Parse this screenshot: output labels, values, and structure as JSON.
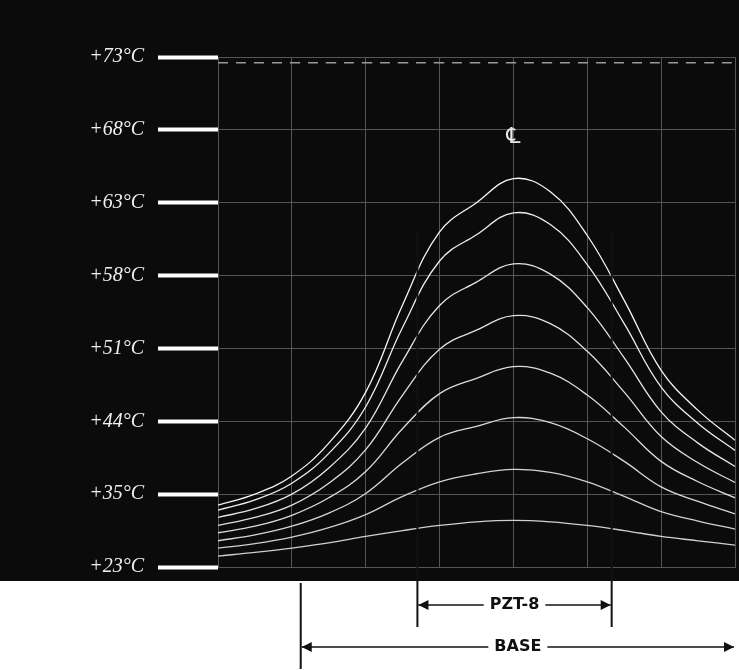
{
  "chart_data": {
    "type": "line",
    "x": [
      0,
      0.5,
      1,
      1.5,
      2,
      2.5,
      3,
      3.5,
      4,
      4.5,
      5,
      5.5,
      6,
      6.5,
      7
    ],
    "series": [
      {
        "color": "#9a9a9a",
        "line_style": "dashed",
        "values": [
          6.92,
          6.92,
          6.92,
          6.92,
          6.92,
          6.92,
          6.92,
          6.92,
          6.92,
          6.92,
          6.92,
          6.92,
          6.92,
          6.92,
          6.92
        ]
      },
      {
        "color": "#d0d0d0",
        "values": [
          0.15,
          0.2,
          0.26,
          0.33,
          0.42,
          0.5,
          0.57,
          0.62,
          0.64,
          0.62,
          0.57,
          0.5,
          0.42,
          0.36,
          0.3
        ]
      },
      {
        "color": "#d0d0d0",
        "values": [
          0.26,
          0.32,
          0.41,
          0.54,
          0.72,
          0.97,
          1.17,
          1.28,
          1.34,
          1.3,
          1.17,
          0.97,
          0.76,
          0.63,
          0.52
        ]
      },
      {
        "color": "#d8d8d8",
        "values": [
          0.36,
          0.44,
          0.56,
          0.74,
          1.01,
          1.43,
          1.78,
          1.93,
          2.05,
          1.98,
          1.76,
          1.45,
          1.1,
          0.9,
          0.73
        ]
      },
      {
        "color": "#dcdcdc",
        "values": [
          0.47,
          0.56,
          0.71,
          0.95,
          1.31,
          1.9,
          2.38,
          2.59,
          2.75,
          2.66,
          2.36,
          1.92,
          1.45,
          1.17,
          0.95
        ]
      },
      {
        "color": "#e0e0e0",
        "values": [
          0.57,
          0.68,
          0.85,
          1.15,
          1.61,
          2.36,
          2.99,
          3.25,
          3.45,
          3.34,
          2.96,
          2.4,
          1.79,
          1.43,
          1.16
        ]
      },
      {
        "color": "#e6e6e6",
        "values": [
          0.68,
          0.8,
          1.0,
          1.36,
          1.91,
          2.83,
          3.59,
          3.91,
          4.16,
          4.02,
          3.56,
          2.87,
          2.13,
          1.7,
          1.38
        ]
      },
      {
        "color": "#eeeeee",
        "values": [
          0.78,
          0.92,
          1.15,
          1.56,
          2.2,
          3.29,
          4.2,
          4.56,
          4.86,
          4.7,
          4.15,
          3.34,
          2.47,
          1.97,
          1.6
        ]
      },
      {
        "color": "#f6f6f6",
        "values": [
          0.85,
          1.0,
          1.25,
          1.7,
          2.4,
          3.6,
          4.6,
          5.0,
          5.33,
          5.15,
          4.55,
          3.66,
          2.7,
          2.15,
          1.74
        ]
      }
    ],
    "xlim": [
      0,
      7
    ],
    "xticks": [
      0,
      1,
      2,
      3,
      4,
      5,
      6,
      7
    ],
    "ylim": [
      0,
      7
    ],
    "yticks": [
      {
        "value": 0,
        "label": "+23°C"
      },
      {
        "value": 1,
        "label": "+35°C"
      },
      {
        "value": 2,
        "label": "+44°C"
      },
      {
        "value": 3,
        "label": "+51°C"
      },
      {
        "value": 4,
        "label": "+58°C"
      },
      {
        "value": 5,
        "label": "+63°C"
      },
      {
        "value": 6,
        "label": "+68°C"
      },
      {
        "value": 7,
        "label": "+73°C"
      }
    ],
    "grid": true,
    "tick_labels": "y",
    "annotations": [
      {
        "text": "℄",
        "x": 4.0,
        "y": 5.9
      },
      {
        "text": "PZT-8",
        "x_start": 2.7,
        "x_end": 5.33,
        "y_top": 4.6
      },
      {
        "text": "BASE",
        "x_start": 1.12,
        "x_end": 7
      }
    ]
  }
}
